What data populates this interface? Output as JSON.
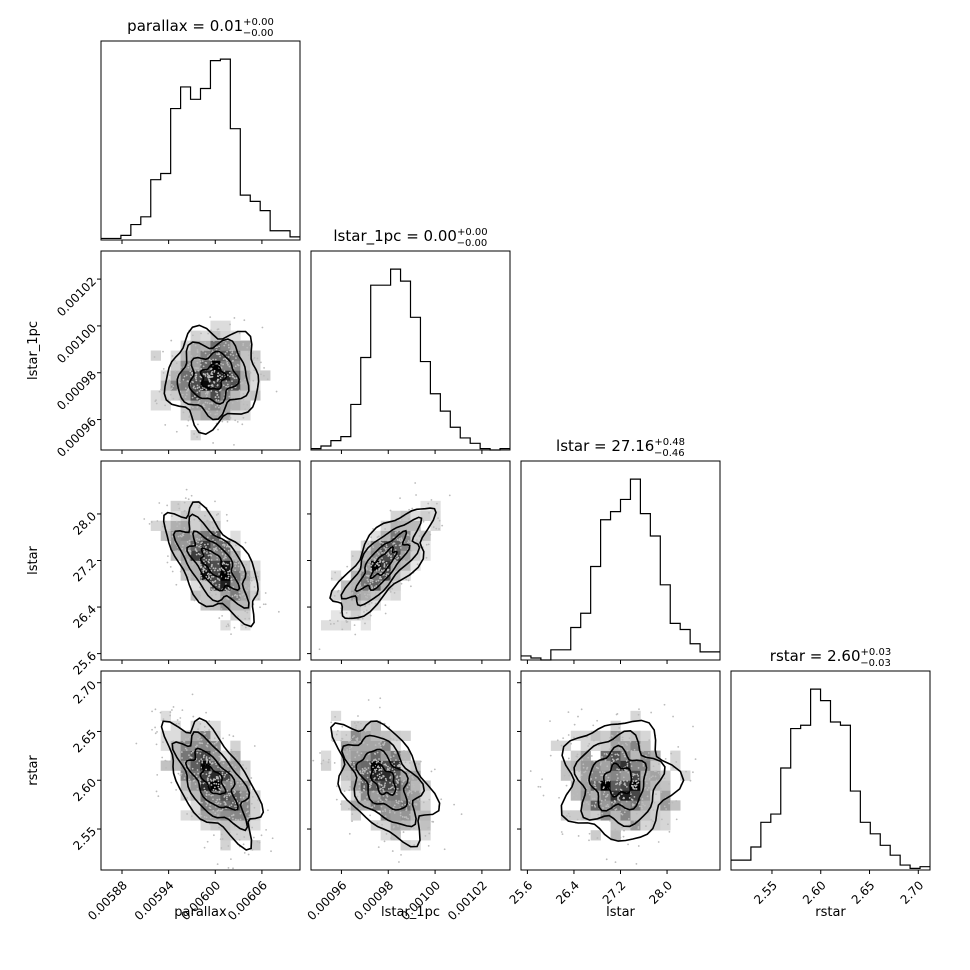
{
  "chart_data": {
    "type": "corner",
    "variables": [
      "parallax",
      "lstar_1pc",
      "lstar",
      "rstar"
    ],
    "titles": {
      "parallax": {
        "name": "parallax",
        "median": "0.01",
        "plus": "+0.00",
        "minus": "−0.00"
      },
      "lstar_1pc": {
        "name": "lstar_1pc",
        "median": "0.00",
        "plus": "+0.00",
        "minus": "−0.00"
      },
      "lstar": {
        "name": "lstar",
        "median": "27.16",
        "plus": "+0.48",
        "minus": "−0.46"
      },
      "rstar": {
        "name": "rstar",
        "median": "2.60",
        "plus": "+0.03",
        "minus": "−0.03"
      }
    },
    "ranges": {
      "parallax": [
        0.005853,
        0.006109
      ],
      "lstar_1pc": [
        0.000947,
        0.001032
      ],
      "lstar": [
        25.49,
        28.91
      ],
      "rstar": [
        2.508,
        2.712
      ]
    },
    "ticks": {
      "parallax": [
        "0.00588",
        "0.00594",
        "0.00600",
        "0.00606"
      ],
      "lstar_1pc": [
        "0.00096",
        "0.00098",
        "0.00100",
        "0.00102"
      ],
      "lstar": [
        "25.6",
        "26.4",
        "27.2",
        "28.0"
      ],
      "rstar": [
        "2.55",
        "2.60",
        "2.65",
        "2.70"
      ]
    },
    "x_labels": [
      "parallax",
      "lstar_1pc",
      "lstar",
      "rstar"
    ],
    "y_labels": [
      "lstar_1pc",
      "lstar",
      "rstar"
    ],
    "histograms": {
      "parallax": {
        "range": [
          0.005853,
          0.006109
        ],
        "counts": [
          1,
          1,
          3,
          10,
          15,
          39,
          43,
          85,
          99,
          91,
          98,
          116,
          117,
          72,
          29,
          25,
          19,
          6,
          6,
          2
        ]
      },
      "lstar_1pc": {
        "range": [
          0.000947,
          0.001032
        ],
        "counts": [
          1,
          3,
          7,
          10,
          34,
          69,
          123,
          123,
          135,
          126,
          99,
          66,
          42,
          29,
          17,
          9,
          5,
          1,
          0,
          1
        ]
      },
      "lstar": {
        "range": [
          25.49,
          28.91
        ],
        "counts": [
          2,
          1,
          0,
          5,
          5,
          16,
          23,
          46,
          69,
          73,
          79,
          89,
          72,
          61,
          37,
          18,
          15,
          8,
          4,
          4
        ]
      },
      "rstar": {
        "range": [
          2.508,
          2.712
        ],
        "counts": [
          6,
          6,
          14,
          29,
          34,
          62,
          86,
          88,
          110,
          103,
          90,
          88,
          48,
          29,
          22,
          15,
          9,
          3,
          1,
          2
        ]
      }
    },
    "correlations": {
      "lstar_1pc|parallax": 0.05,
      "lstar|parallax": -0.6,
      "lstar|lstar_1pc": 0.75,
      "rstar|parallax": -0.6,
      "rstar|lstar_1pc": -0.45,
      "rstar|lstar": 0.0
    },
    "centers": {
      "parallax": 0.005997,
      "lstar_1pc": 0.000978,
      "lstar": 27.16,
      "rstar": 2.6
    },
    "spreads": {
      "parallax": 2.95e-05,
      "lstar_1pc": 1.02e-05,
      "lstar": 0.47,
      "rstar": 0.03
    }
  }
}
